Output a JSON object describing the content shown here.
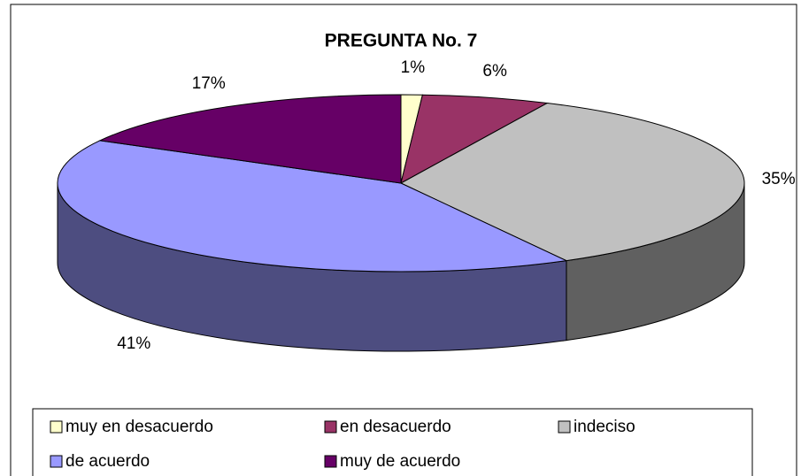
{
  "chart_data": {
    "type": "pie",
    "title": "PREGUNTA No. 7",
    "categories": [
      "muy en desacuerdo",
      "en desacuerdo",
      "indeciso",
      "de acuerdo",
      "muy de acuerdo"
    ],
    "values": [
      1,
      6,
      35,
      41,
      17
    ],
    "value_labels": [
      "1%",
      "6%",
      "35%",
      "41%",
      "17%"
    ],
    "colors": [
      "#ffffcc",
      "#993366",
      "#c0c0c0",
      "#9999ff",
      "#660066"
    ],
    "legend": "bottom"
  }
}
